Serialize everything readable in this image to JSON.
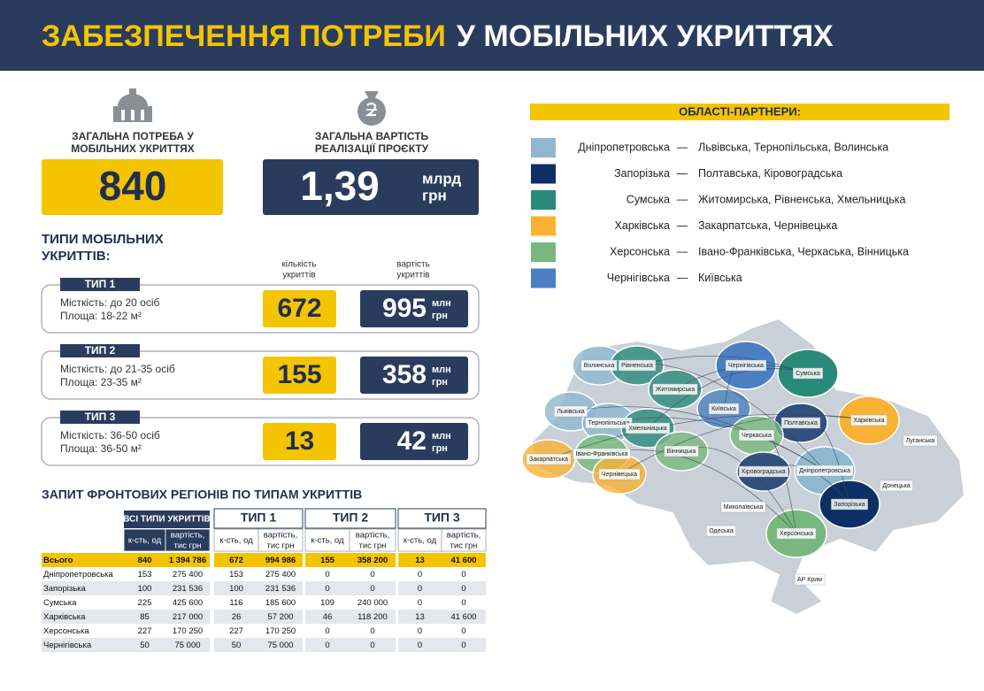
{
  "header": {
    "title_accent": "ЗАБЕЗПЕЧЕННЯ ПОТРЕБИ",
    "title_rest": "У МОБІЛЬНИХ УКРИТТЯХ"
  },
  "summary": {
    "need": {
      "caption": [
        "ЗАГАЛЬНА ПОТРЕБА У",
        "МОБІЛЬНИХ УКРИТТЯХ"
      ],
      "value": 840
    },
    "cost": {
      "caption": [
        "ЗАГАЛЬНА ВАРТІСТЬ",
        "РЕАЛІЗАЦІЇ ПРОЄКТУ"
      ],
      "value": "1,39",
      "unit": [
        "млрд",
        "грн"
      ]
    }
  },
  "types": {
    "title": [
      "ТИПИ МОБІЛЬНИХ",
      "УКРИТТІВ:"
    ],
    "count_header": [
      "кількість",
      "укриттів"
    ],
    "cost_header": [
      "вартість",
      "укриттів"
    ],
    "unit": [
      "млн",
      "грн"
    ],
    "items": [
      {
        "tag": "ТИП 1",
        "capacity": "Місткість: до 20 осіб",
        "area": "Площа: 18-22 м²",
        "count": 672,
        "cost": 995
      },
      {
        "tag": "ТИП 2",
        "capacity": "Місткість: до 21-35 осіб",
        "area": "Площа: 23-35 м²",
        "count": 155,
        "cost": 358
      },
      {
        "tag": "ТИП 3",
        "capacity": "Місткість: 36-50 осіб",
        "area": "Площа: 36-50 м²",
        "count": 13,
        "cost": 42
      }
    ]
  },
  "table": {
    "title": "ЗАПИТ ФРОНТОВИХ РЕГІОНІВ ПО ТИПАМ УКРИТТІВ",
    "groups": [
      "ВСІ ТИПИ УКРИТТІВ",
      "ТИП 1",
      "ТИП 2",
      "ТИП 3"
    ],
    "subheaders": {
      "count": "к-сть, од",
      "cost": [
        "вартість,",
        "тис грн"
      ]
    },
    "rows": [
      [
        "Всього",
        "840",
        "1 394 786",
        "672",
        "994 986",
        "155",
        "358 200",
        "13",
        "41 600"
      ],
      [
        "Дніпропетровська",
        "153",
        "275 400",
        "153",
        "275 400",
        "0",
        "0",
        "0",
        "0"
      ],
      [
        "Запорізька",
        "100",
        "231 536",
        "100",
        "231 536",
        "0",
        "0",
        "0",
        "0"
      ],
      [
        "Сумська",
        "225",
        "425 600",
        "116",
        "185 600",
        "109",
        "240 000",
        "0",
        "0"
      ],
      [
        "Харківська",
        "85",
        "217 000",
        "26",
        "57 200",
        "46",
        "118 200",
        "13",
        "41 600"
      ],
      [
        "Херсонська",
        "227",
        "170 250",
        "227",
        "170 250",
        "0",
        "0",
        "0",
        "0"
      ],
      [
        "Чернігівська",
        "50",
        "75 000",
        "50",
        "75 000",
        "0",
        "0",
        "0",
        "0"
      ]
    ]
  },
  "legend": {
    "title": "ОБЛАСТІ-ПАРТНЕРИ:",
    "dash": "—",
    "rows": [
      {
        "region": "Дніпропетровська",
        "color": "#8fb8d0",
        "partners": "Львівська, Тернопільська, Волинська"
      },
      {
        "region": "Запорізька",
        "color": "#0c2f66",
        "partners": "Полтавська, Кіровоградська"
      },
      {
        "region": "Сумська",
        "color": "#2a8a7a",
        "partners": "Житомирська, Рівненська, Хмельницька"
      },
      {
        "region": "Харківська",
        "color": "#f9b233",
        "partners": "Закарпатська, Чернівецька"
      },
      {
        "region": "Херсонська",
        "color": "#78b87e",
        "partners": "Івано-Франківська, Черкаська, Вінницька"
      },
      {
        "region": "Чернігівська",
        "color": "#4a7fc1",
        "partners": "Київська"
      }
    ]
  },
  "map": {
    "regions": [
      "Волинська",
      "Рівненська",
      "Чернігівська",
      "Сумська",
      "Житомирська",
      "Львівська",
      "Тернопільська",
      "Київська",
      "Полтавська",
      "Харківська",
      "Хмельницька",
      "Луганська",
      "Черкаська",
      "Закарпатська",
      "Івано-Франківська",
      "Вінницька",
      "Кіровоградська",
      "Дніпропетровська",
      "Донецька",
      "Чернівецька",
      "Миколаївська",
      "Запорізька",
      "Одеська",
      "Херсонська",
      "АР Крим"
    ]
  }
}
